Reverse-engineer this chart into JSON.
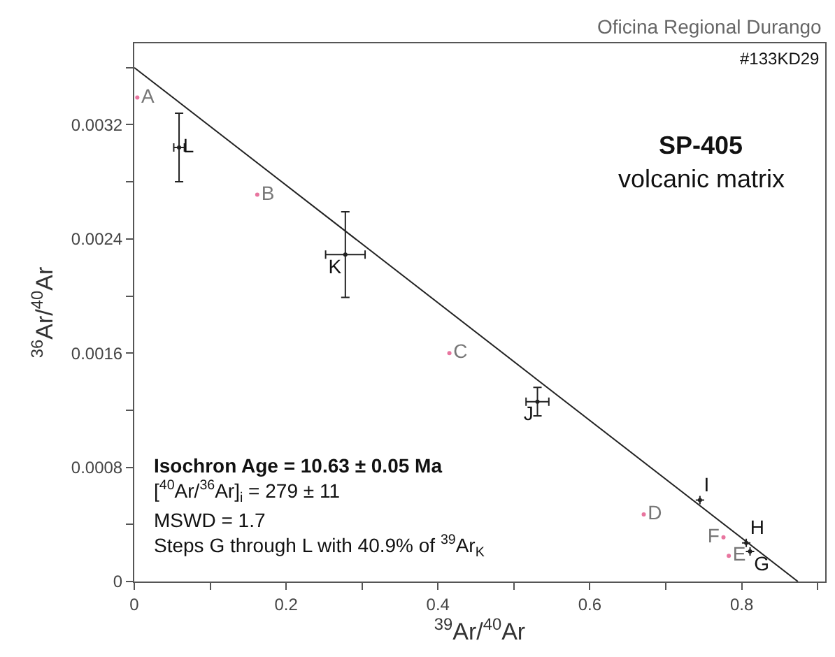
{
  "chart_data": {
    "type": "scatter",
    "title": "SP-405",
    "subtitle": "volcanic matrix",
    "xlabel": "$^{39}$Ar/$^{40}$Ar",
    "ylabel": "$^{36}$Ar/$^{40}$Ar",
    "annotations": [
      "Oficina Regional Durango",
      "#133KD29",
      "Isochron Age = 10.63 ± 0.05 Ma",
      "[$^{40}$Ar/$^{36}$Ar]$_{i}$ = 279 ± 11",
      "MSWD = 1.7",
      "Steps G through L with 40.9% of $^{39}$Ar$_{K}$"
    ],
    "series": [
      {
        "color": "#e8759f",
        "marker": "circle",
        "x": [
          0.004,
          0.162,
          0.415,
          0.671,
          0.783,
          0.776
        ],
        "values": [
          0.00339,
          0.00271,
          0.0016,
          0.00047,
          0.00018,
          0.00031
        ],
        "value_labels": [
          "A",
          "B",
          "C",
          "D",
          "E",
          "F"
        ]
      },
      {
        "color": "#222222",
        "marker": "circle",
        "x": [
          0.811,
          0.806,
          0.745,
          0.531,
          0.278,
          0.059
        ],
        "values": [
          0.00021,
          0.00027,
          0.00057,
          0.00126,
          0.00229,
          0.00304
        ],
        "value_labels": [
          "G",
          "H",
          "I",
          "J",
          "K",
          "L"
        ],
        "errors": [
          null,
          null,
          null,
          0.0001,
          0.0003,
          0.00024
        ],
        "xerrors": [
          null,
          null,
          null,
          0.015,
          0.026,
          0.007
        ]
      },
      {
        "type": "line",
        "color": "#222222",
        "x": [
          0,
          0.874
        ],
        "values": [
          0.0036,
          0
        ]
      }
    ],
    "xlim": [
      0,
      0.91
    ],
    "ylim": [
      0,
      0.00377
    ],
    "xticks": [
      0,
      {
        "value": 0.1,
        "label": null
      },
      0.2,
      {
        "value": 0.3,
        "label": null
      },
      0.4,
      {
        "value": 0.5,
        "label": null
      },
      0.6,
      {
        "value": 0.7,
        "label": null
      },
      0.8,
      {
        "value": 0.9,
        "label": null
      }
    ],
    "yticks": [
      0,
      {
        "value": 0.0004,
        "label": null
      },
      0.0008,
      {
        "value": 0.0012,
        "label": null
      },
      0.0016,
      {
        "value": 0.002,
        "label": null
      },
      0.0024,
      {
        "value": 0.0028,
        "label": null
      },
      0.0032,
      {
        "value": 0.0036,
        "label": null
      }
    ]
  }
}
